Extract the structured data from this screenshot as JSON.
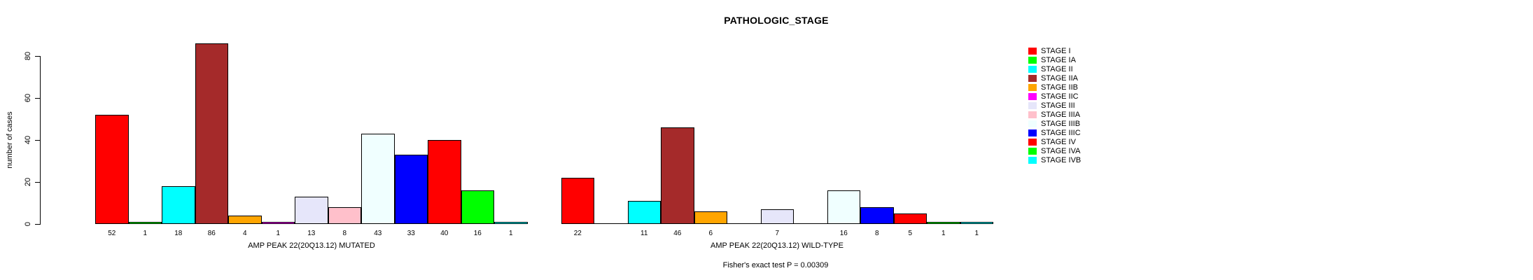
{
  "title": "PATHOLOGIC_STAGE",
  "chart_data": {
    "type": "bar",
    "title": "PATHOLOGIC_STAGE",
    "ylabel": "number of cases",
    "yticks": [
      0,
      20,
      40,
      60,
      80
    ],
    "ylim": [
      0,
      86
    ],
    "grid": false,
    "legend_position": "right",
    "categories": [
      "STAGE I",
      "STAGE IA",
      "STAGE II",
      "STAGE IIA",
      "STAGE IIB",
      "STAGE IIC",
      "STAGE III",
      "STAGE IIIA",
      "STAGE IIIB",
      "STAGE IIIC",
      "STAGE IV",
      "STAGE IVA",
      "STAGE IVB"
    ],
    "colors": [
      "#FF0000",
      "#00FF00",
      "#00FFFF",
      "#A52A2A",
      "#FFA500",
      "#FF00FF",
      "#E6E6FA",
      "#FFC0CB",
      "#F0FFFF",
      "#0000FF",
      "#FF0000",
      "#00FF00",
      "#00FFFF"
    ],
    "series": [
      {
        "name": "AMP PEAK 22(20Q13.12) MUTATED",
        "values": [
          52,
          1,
          18,
          86,
          4,
          1,
          13,
          8,
          43,
          33,
          40,
          16,
          1
        ]
      },
      {
        "name": "AMP PEAK 22(20Q13.12) WILD-TYPE",
        "values": [
          22,
          0,
          11,
          46,
          6,
          0,
          7,
          0,
          16,
          8,
          5,
          1,
          1
        ]
      }
    ],
    "footnote": "Fisher's exact test P = 0.00309"
  }
}
